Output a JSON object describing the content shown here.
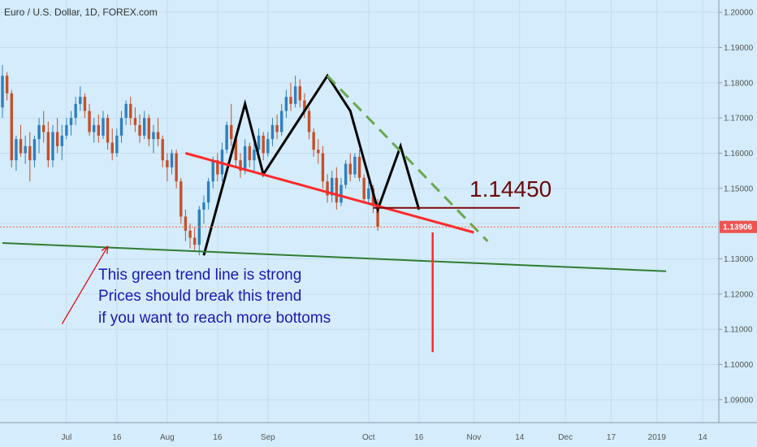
{
  "chart_data": {
    "type": "candlestick",
    "title": "Euro / U.S. Dollar, 1D, FOREX.com",
    "ylim": [
      1.0835,
      1.2035
    ],
    "y_ticks": [
      "1.09000",
      "1.10000",
      "1.11000",
      "1.12000",
      "1.13000",
      "1.14000",
      "1.15000",
      "1.16000",
      "1.17000",
      "1.18000",
      "1.19000",
      "1.20000"
    ],
    "x_ticks": [
      {
        "label": "Jul",
        "day": 14
      },
      {
        "label": "16",
        "day": 25
      },
      {
        "label": "Aug",
        "day": 36
      },
      {
        "label": "16",
        "day": 47
      },
      {
        "label": "Sep",
        "day": 58
      },
      {
        "label": "Oct",
        "day": 80
      },
      {
        "label": "16",
        "day": 91
      },
      {
        "label": "Nov",
        "day": 103
      },
      {
        "label": "14",
        "day": 113
      },
      {
        "label": "Dec",
        "day": 123
      },
      {
        "label": "17",
        "day": 133
      },
      {
        "label": "2019",
        "day": 143
      },
      {
        "label": "14",
        "day": 153
      }
    ],
    "current_price": "1.13906",
    "level_label": "1.14450",
    "level_value": 1.1445,
    "annotation_lines": [
      "This green trend line is strong",
      "Prices should break this trend",
      "if you want to reach more bottoms"
    ],
    "candles": [
      [
        1.173,
        1.185,
        1.17,
        1.182
      ],
      [
        1.182,
        1.183,
        1.175,
        1.177
      ],
      [
        1.177,
        1.178,
        1.156,
        1.158
      ],
      [
        1.158,
        1.165,
        1.155,
        1.164
      ],
      [
        1.164,
        1.168,
        1.159,
        1.16
      ],
      [
        1.16,
        1.165,
        1.157,
        1.162
      ],
      [
        1.162,
        1.166,
        1.152,
        1.158
      ],
      [
        1.158,
        1.165,
        1.156,
        1.164
      ],
      [
        1.164,
        1.17,
        1.16,
        1.168
      ],
      [
        1.168,
        1.172,
        1.163,
        1.166
      ],
      [
        1.166,
        1.169,
        1.156,
        1.158
      ],
      [
        1.158,
        1.168,
        1.156,
        1.166
      ],
      [
        1.166,
        1.17,
        1.16,
        1.162
      ],
      [
        1.162,
        1.168,
        1.158,
        1.165
      ],
      [
        1.165,
        1.17,
        1.164,
        1.168
      ],
      [
        1.168,
        1.172,
        1.165,
        1.17
      ],
      [
        1.17,
        1.176,
        1.168,
        1.174
      ],
      [
        1.174,
        1.179,
        1.172,
        1.176
      ],
      [
        1.176,
        1.177,
        1.17,
        1.172
      ],
      [
        1.172,
        1.174,
        1.165,
        1.166
      ],
      [
        1.166,
        1.17,
        1.163,
        1.168
      ],
      [
        1.168,
        1.171,
        1.163,
        1.165
      ],
      [
        1.165,
        1.172,
        1.164,
        1.17
      ],
      [
        1.17,
        1.171,
        1.161,
        1.163
      ],
      [
        1.163,
        1.167,
        1.158,
        1.16
      ],
      [
        1.16,
        1.167,
        1.159,
        1.165
      ],
      [
        1.165,
        1.172,
        1.163,
        1.17
      ],
      [
        1.17,
        1.175,
        1.168,
        1.174
      ],
      [
        1.174,
        1.176,
        1.168,
        1.17
      ],
      [
        1.17,
        1.173,
        1.166,
        1.168
      ],
      [
        1.168,
        1.171,
        1.163,
        1.165
      ],
      [
        1.165,
        1.172,
        1.164,
        1.17
      ],
      [
        1.17,
        1.171,
        1.162,
        1.164
      ],
      [
        1.164,
        1.168,
        1.16,
        1.166
      ],
      [
        1.166,
        1.17,
        1.162,
        1.164
      ],
      [
        1.164,
        1.165,
        1.156,
        1.158
      ],
      [
        1.158,
        1.16,
        1.152,
        1.156
      ],
      [
        1.156,
        1.161,
        1.154,
        1.16
      ],
      [
        1.16,
        1.161,
        1.15,
        1.152
      ],
      [
        1.152,
        1.153,
        1.14,
        1.142
      ],
      [
        1.142,
        1.144,
        1.135,
        1.138
      ],
      [
        1.138,
        1.14,
        1.133,
        1.136
      ],
      [
        1.136,
        1.139,
        1.132,
        1.134
      ],
      [
        1.134,
        1.145,
        1.131,
        1.144
      ],
      [
        1.144,
        1.148,
        1.14,
        1.146
      ],
      [
        1.146,
        1.153,
        1.144,
        1.152
      ],
      [
        1.152,
        1.159,
        1.15,
        1.158
      ],
      [
        1.158,
        1.16,
        1.152,
        1.154
      ],
      [
        1.154,
        1.163,
        1.152,
        1.161
      ],
      [
        1.161,
        1.169,
        1.16,
        1.168
      ],
      [
        1.168,
        1.174,
        1.162,
        1.164
      ],
      [
        1.164,
        1.165,
        1.156,
        1.158
      ],
      [
        1.158,
        1.16,
        1.153,
        1.155
      ],
      [
        1.155,
        1.164,
        1.154,
        1.162
      ],
      [
        1.162,
        1.163,
        1.156,
        1.158
      ],
      [
        1.158,
        1.164,
        1.155,
        1.161
      ],
      [
        1.161,
        1.167,
        1.159,
        1.165
      ],
      [
        1.165,
        1.166,
        1.158,
        1.16
      ],
      [
        1.16,
        1.166,
        1.159,
        1.164
      ],
      [
        1.164,
        1.17,
        1.162,
        1.168
      ],
      [
        1.168,
        1.171,
        1.164,
        1.166
      ],
      [
        1.166,
        1.174,
        1.165,
        1.172
      ],
      [
        1.172,
        1.178,
        1.17,
        1.176
      ],
      [
        1.176,
        1.18,
        1.172,
        1.174
      ],
      [
        1.174,
        1.182,
        1.173,
        1.179
      ],
      [
        1.179,
        1.181,
        1.173,
        1.175
      ],
      [
        1.175,
        1.177,
        1.17,
        1.172
      ],
      [
        1.172,
        1.173,
        1.164,
        1.166
      ],
      [
        1.166,
        1.167,
        1.159,
        1.161
      ],
      [
        1.161,
        1.164,
        1.157,
        1.16
      ],
      [
        1.16,
        1.162,
        1.15,
        1.152
      ],
      [
        1.152,
        1.154,
        1.146,
        1.148
      ],
      [
        1.148,
        1.155,
        1.146,
        1.153
      ],
      [
        1.153,
        1.156,
        1.144,
        1.146
      ],
      [
        1.146,
        1.153,
        1.145,
        1.151
      ],
      [
        1.151,
        1.158,
        1.15,
        1.157
      ],
      [
        1.157,
        1.16,
        1.152,
        1.154
      ],
      [
        1.154,
        1.16,
        1.153,
        1.159
      ],
      [
        1.159,
        1.161,
        1.152,
        1.153
      ],
      [
        1.153,
        1.154,
        1.146,
        1.147
      ],
      [
        1.147,
        1.152,
        1.146,
        1.15
      ],
      [
        1.15,
        1.151,
        1.143,
        1.145
      ],
      [
        1.145,
        1.147,
        1.138,
        1.1391
      ]
    ],
    "drawings": [
      {
        "name": "black-zigzag-pattern",
        "color": "#000000",
        "style": "solid",
        "points": [
          [
            44,
            1.131
          ],
          [
            53,
            1.174
          ],
          [
            57,
            1.154
          ],
          [
            71,
            1.182
          ],
          [
            76,
            1.172
          ],
          [
            82,
            1.144
          ],
          [
            87,
            1.162
          ],
          [
            91,
            1.144
          ]
        ]
      },
      {
        "name": "red-neckline",
        "color": "#ff2a2a",
        "style": "solid",
        "points": [
          [
            40,
            1.16
          ],
          [
            103,
            1.1375
          ]
        ]
      },
      {
        "name": "green-dashed-trend",
        "color": "#6aa84f",
        "style": "dashed",
        "points": [
          [
            71,
            1.182
          ],
          [
            106,
            1.135
          ]
        ]
      },
      {
        "name": "dark-green-support",
        "color": "#2e7d32",
        "style": "solid",
        "points": [
          [
            0,
            1.1345
          ],
          [
            145,
            1.1265
          ]
        ]
      },
      {
        "name": "maroon-level-line",
        "color": "#7a0a0a",
        "style": "solid",
        "points": [
          [
            81,
            1.1445
          ],
          [
            113,
            1.1445
          ]
        ]
      },
      {
        "name": "red-target-line",
        "color": "#ff2a2a",
        "style": "solid",
        "points": [
          [
            94,
            1.1375
          ],
          [
            94,
            1.1035
          ]
        ]
      },
      {
        "name": "red-arrow-line",
        "color": "#e00000",
        "style": "solid",
        "points": [
          [
            13,
            1.1115
          ],
          [
            23,
            1.1335
          ]
        ]
      }
    ]
  }
}
